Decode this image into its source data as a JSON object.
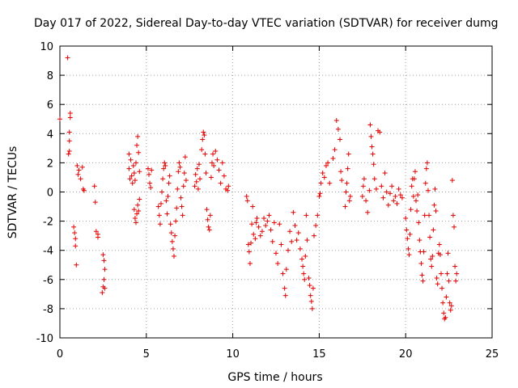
{
  "chart_data": {
    "type": "scatter",
    "title": "Day 017 of 2022, Sidereal Day-to-day VTEC variation (SDTVAR) for receiver dumg",
    "xlabel": "GPS time / hours",
    "ylabel": "SDTVAR / TECUs",
    "xlim": [
      0,
      25
    ],
    "ylim": [
      -10,
      10
    ],
    "xticks": [
      "0",
      "5",
      "10",
      "15",
      "20",
      "25"
    ],
    "yticks": [
      "-10",
      "-8",
      "-6",
      "-4",
      "-2",
      "0",
      "2",
      "4",
      "6",
      "8",
      "10"
    ],
    "grid": true,
    "marker": "+",
    "marker_color": "#e00000",
    "series": [
      {
        "name": "SDTVAR",
        "points": [
          [
            0.0,
            5.0
          ],
          [
            0.45,
            9.2
          ],
          [
            0.5,
            2.6
          ],
          [
            0.55,
            2.8
          ],
          [
            0.55,
            4.1
          ],
          [
            0.6,
            5.1
          ],
          [
            0.6,
            5.4
          ],
          [
            0.55,
            3.5
          ],
          [
            0.8,
            -2.4
          ],
          [
            0.85,
            -2.8
          ],
          [
            0.9,
            -3.2
          ],
          [
            0.9,
            -3.7
          ],
          [
            0.95,
            -5.0
          ],
          [
            1.0,
            1.8
          ],
          [
            1.05,
            1.2
          ],
          [
            1.1,
            1.5
          ],
          [
            1.2,
            0.9
          ],
          [
            1.3,
            1.7
          ],
          [
            1.35,
            0.2
          ],
          [
            1.4,
            0.1
          ],
          [
            2.0,
            0.4
          ],
          [
            2.05,
            -0.7
          ],
          [
            2.1,
            -2.7
          ],
          [
            2.2,
            -2.9
          ],
          [
            2.2,
            -3.1
          ],
          [
            2.5,
            -4.3
          ],
          [
            2.55,
            -4.7
          ],
          [
            2.6,
            -5.3
          ],
          [
            2.55,
            -6.0
          ],
          [
            2.5,
            -6.5
          ],
          [
            2.45,
            -6.9
          ],
          [
            2.6,
            -6.6
          ],
          [
            4.0,
            2.6
          ],
          [
            4.0,
            1.6
          ],
          [
            4.05,
            0.9
          ],
          [
            4.1,
            2.2
          ],
          [
            4.15,
            1.1
          ],
          [
            4.2,
            0.6
          ],
          [
            4.25,
            1.8
          ],
          [
            4.3,
            1.3
          ],
          [
            4.35,
            0.8
          ],
          [
            4.4,
            2.0
          ],
          [
            4.45,
            3.2
          ],
          [
            4.5,
            3.8
          ],
          [
            4.55,
            2.7
          ],
          [
            4.6,
            1.4
          ],
          [
            4.3,
            -1.2
          ],
          [
            4.35,
            -1.8
          ],
          [
            4.4,
            -2.1
          ],
          [
            4.45,
            -1.5
          ],
          [
            4.5,
            -0.9
          ],
          [
            4.55,
            -1.3
          ],
          [
            4.6,
            -0.5
          ],
          [
            5.1,
            1.6
          ],
          [
            5.15,
            1.2
          ],
          [
            5.2,
            0.6
          ],
          [
            5.25,
            0.3
          ],
          [
            5.3,
            1.5
          ],
          [
            5.7,
            -1.0
          ],
          [
            5.75,
            -1.6
          ],
          [
            5.8,
            -2.2
          ],
          [
            5.85,
            -0.8
          ],
          [
            5.9,
            0.0
          ],
          [
            5.95,
            0.9
          ],
          [
            6.0,
            1.6
          ],
          [
            6.05,
            2.0
          ],
          [
            6.1,
            1.8
          ],
          [
            6.15,
            -0.6
          ],
          [
            6.2,
            -1.5
          ],
          [
            6.25,
            -0.3
          ],
          [
            6.3,
            0.6
          ],
          [
            6.35,
            1.1
          ],
          [
            6.4,
            -2.2
          ],
          [
            6.45,
            -2.8
          ],
          [
            6.5,
            -3.4
          ],
          [
            6.55,
            -3.9
          ],
          [
            6.6,
            -4.4
          ],
          [
            6.65,
            -3.0
          ],
          [
            6.7,
            -2.0
          ],
          [
            6.75,
            -1.1
          ],
          [
            6.8,
            0.2
          ],
          [
            6.85,
            1.4
          ],
          [
            6.9,
            2.0
          ],
          [
            6.95,
            1.7
          ],
          [
            7.0,
            -0.4
          ],
          [
            7.05,
            -1.0
          ],
          [
            7.1,
            -1.6
          ],
          [
            7.15,
            0.4
          ],
          [
            7.2,
            1.3
          ],
          [
            7.25,
            2.4
          ],
          [
            7.3,
            0.8
          ],
          [
            7.8,
            0.4
          ],
          [
            7.85,
            1.2
          ],
          [
            7.9,
            0.7
          ],
          [
            7.95,
            1.6
          ],
          [
            8.0,
            0.2
          ],
          [
            8.05,
            1.9
          ],
          [
            8.1,
            0.9
          ],
          [
            8.2,
            2.9
          ],
          [
            8.25,
            3.6
          ],
          [
            8.3,
            4.1
          ],
          [
            8.35,
            3.9
          ],
          [
            8.4,
            2.6
          ],
          [
            8.45,
            1.3
          ],
          [
            8.5,
            -1.2
          ],
          [
            8.55,
            -1.9
          ],
          [
            8.6,
            -2.4
          ],
          [
            8.65,
            -2.6
          ],
          [
            8.7,
            -1.6
          ],
          [
            8.75,
            1.0
          ],
          [
            8.8,
            2.0
          ],
          [
            8.85,
            2.6
          ],
          [
            8.9,
            1.8
          ],
          [
            9.0,
            2.8
          ],
          [
            9.1,
            2.2
          ],
          [
            9.2,
            1.5
          ],
          [
            9.3,
            0.6
          ],
          [
            9.4,
            2.0
          ],
          [
            9.5,
            1.1
          ],
          [
            9.6,
            0.2
          ],
          [
            9.7,
            0.1
          ],
          [
            9.75,
            0.4
          ],
          [
            10.8,
            -0.3
          ],
          [
            10.85,
            -0.6
          ],
          [
            10.9,
            -3.6
          ],
          [
            10.95,
            -4.1
          ],
          [
            11.0,
            -4.9
          ],
          [
            11.05,
            -3.5
          ],
          [
            11.1,
            -2.2
          ],
          [
            11.15,
            -1.0
          ],
          [
            11.2,
            -2.9
          ],
          [
            11.3,
            -3.2
          ],
          [
            11.35,
            -2.1
          ],
          [
            11.4,
            -1.8
          ],
          [
            11.5,
            -2.4
          ],
          [
            11.6,
            -3.0
          ],
          [
            11.7,
            -2.7
          ],
          [
            11.8,
            -1.8
          ],
          [
            11.9,
            -2.3
          ],
          [
            12.0,
            -2.0
          ],
          [
            12.1,
            -1.6
          ],
          [
            12.2,
            -2.6
          ],
          [
            12.3,
            -3.4
          ],
          [
            12.4,
            -2.1
          ],
          [
            12.5,
            -4.2
          ],
          [
            12.6,
            -4.9
          ],
          [
            12.7,
            -2.2
          ],
          [
            12.8,
            -3.6
          ],
          [
            12.9,
            -5.6
          ],
          [
            13.0,
            -6.6
          ],
          [
            13.05,
            -7.1
          ],
          [
            13.1,
            -5.3
          ],
          [
            13.2,
            -4.0
          ],
          [
            13.3,
            -2.7
          ],
          [
            13.4,
            -3.4
          ],
          [
            13.5,
            -1.4
          ],
          [
            13.6,
            -2.3
          ],
          [
            13.7,
            -3.3
          ],
          [
            13.8,
            -2.8
          ],
          [
            13.9,
            -3.9
          ],
          [
            14.0,
            -4.6
          ],
          [
            14.05,
            -5.1
          ],
          [
            14.1,
            -5.6
          ],
          [
            14.15,
            -6.0
          ],
          [
            14.2,
            -4.4
          ],
          [
            14.25,
            -1.6
          ],
          [
            14.3,
            -3.3
          ],
          [
            14.4,
            -5.9
          ],
          [
            14.45,
            -6.4
          ],
          [
            14.5,
            -7.1
          ],
          [
            14.55,
            -7.5
          ],
          [
            14.6,
            -8.0
          ],
          [
            14.65,
            -6.6
          ],
          [
            14.7,
            -3.0
          ],
          [
            14.8,
            -2.3
          ],
          [
            14.9,
            -1.6
          ],
          [
            15.0,
            -0.3
          ],
          [
            15.05,
            -0.1
          ],
          [
            15.1,
            0.6
          ],
          [
            15.2,
            1.3
          ],
          [
            15.3,
            1.0
          ],
          [
            15.4,
            1.8
          ],
          [
            15.5,
            2.0
          ],
          [
            15.6,
            0.6
          ],
          [
            15.8,
            2.3
          ],
          [
            15.9,
            2.9
          ],
          [
            16.0,
            4.9
          ],
          [
            16.1,
            4.3
          ],
          [
            16.2,
            3.6
          ],
          [
            16.25,
            1.4
          ],
          [
            16.3,
            0.8
          ],
          [
            16.5,
            -1.0
          ],
          [
            16.55,
            0.0
          ],
          [
            16.6,
            0.6
          ],
          [
            16.65,
            1.6
          ],
          [
            16.7,
            2.6
          ],
          [
            16.75,
            -0.6
          ],
          [
            16.8,
            -0.3
          ],
          [
            17.5,
            -0.3
          ],
          [
            17.55,
            0.4
          ],
          [
            17.6,
            0.9
          ],
          [
            17.7,
            -0.6
          ],
          [
            17.8,
            -1.4
          ],
          [
            17.9,
            0.1
          ],
          [
            17.95,
            4.6
          ],
          [
            18.0,
            3.8
          ],
          [
            18.05,
            3.1
          ],
          [
            18.1,
            2.6
          ],
          [
            18.15,
            1.9
          ],
          [
            18.2,
            0.9
          ],
          [
            18.3,
            0.2
          ],
          [
            18.4,
            4.2
          ],
          [
            18.5,
            4.1
          ],
          [
            18.6,
            0.4
          ],
          [
            18.7,
            -0.4
          ],
          [
            18.8,
            1.3
          ],
          [
            18.9,
            0.0
          ],
          [
            19.0,
            -0.9
          ],
          [
            19.1,
            -0.1
          ],
          [
            19.2,
            0.4
          ],
          [
            19.3,
            -0.6
          ],
          [
            19.4,
            -0.3
          ],
          [
            19.5,
            -0.8
          ],
          [
            19.6,
            0.2
          ],
          [
            19.7,
            -0.2
          ],
          [
            19.8,
            -0.4
          ],
          [
            20.0,
            -1.8
          ],
          [
            20.05,
            -2.6
          ],
          [
            20.1,
            -3.2
          ],
          [
            20.15,
            -3.9
          ],
          [
            20.2,
            -4.3
          ],
          [
            20.25,
            -2.9
          ],
          [
            20.3,
            -1.2
          ],
          [
            20.35,
            0.4
          ],
          [
            20.4,
            0.9
          ],
          [
            20.45,
            -0.3
          ],
          [
            20.5,
            0.9
          ],
          [
            20.55,
            1.4
          ],
          [
            20.6,
            -0.6
          ],
          [
            20.65,
            -1.3
          ],
          [
            20.7,
            -0.2
          ],
          [
            20.75,
            -2.1
          ],
          [
            20.8,
            -3.3
          ],
          [
            20.85,
            -4.1
          ],
          [
            20.9,
            -4.9
          ],
          [
            20.95,
            -5.7
          ],
          [
            21.0,
            -6.1
          ],
          [
            21.05,
            -4.1
          ],
          [
            21.1,
            -1.6
          ],
          [
            21.15,
            0.6
          ],
          [
            21.2,
            1.6
          ],
          [
            21.25,
            2.0
          ],
          [
            21.3,
            0.1
          ],
          [
            21.35,
            -1.6
          ],
          [
            21.4,
            -3.1
          ],
          [
            21.45,
            -4.6
          ],
          [
            21.5,
            -5.1
          ],
          [
            21.55,
            -4.4
          ],
          [
            21.6,
            -2.6
          ],
          [
            21.65,
            -0.9
          ],
          [
            21.7,
            0.2
          ],
          [
            21.75,
            -1.3
          ],
          [
            21.8,
            -5.9
          ],
          [
            21.85,
            -6.3
          ],
          [
            21.9,
            -4.2
          ],
          [
            21.95,
            -3.6
          ],
          [
            22.0,
            -4.3
          ],
          [
            22.05,
            -5.6
          ],
          [
            22.1,
            -6.6
          ],
          [
            22.15,
            -7.6
          ],
          [
            22.2,
            -8.3
          ],
          [
            22.25,
            -8.7
          ],
          [
            22.3,
            -8.6
          ],
          [
            22.35,
            -7.2
          ],
          [
            22.4,
            -5.6
          ],
          [
            22.45,
            -4.2
          ],
          [
            22.5,
            -6.1
          ],
          [
            22.55,
            -7.6
          ],
          [
            22.6,
            -8.1
          ],
          [
            22.65,
            -7.8
          ],
          [
            22.7,
            0.8
          ],
          [
            22.75,
            -1.6
          ],
          [
            22.8,
            -2.4
          ],
          [
            22.85,
            -5.1
          ],
          [
            22.9,
            -6.1
          ],
          [
            22.95,
            -5.6
          ]
        ]
      }
    ]
  }
}
